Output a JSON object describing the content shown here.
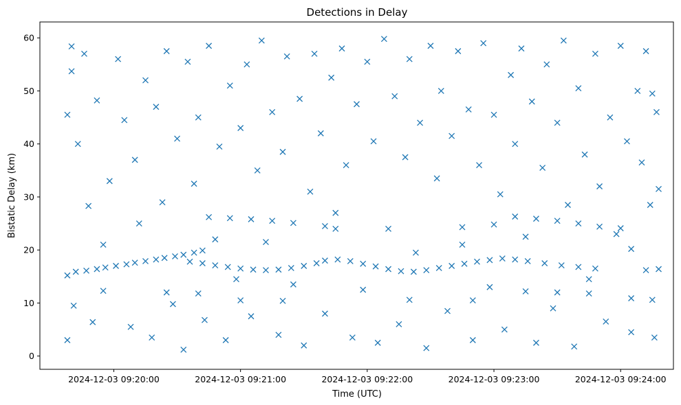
{
  "chart_data": {
    "type": "scatter",
    "title": "Detections in Delay",
    "xlabel": "Time (UTC)",
    "ylabel": "Bistatic Delay (km)",
    "marker": "x",
    "color": "#1f77b4",
    "grid": false,
    "legend": "none",
    "xlim": [
      "2024-12-03 09:19:25",
      "2024-12-03 09:24:25"
    ],
    "ylim": [
      -2.5,
      63
    ],
    "x_ticks": [
      "2024-12-03 09:20:00",
      "2024-12-03 09:21:00",
      "2024-12-03 09:22:00",
      "2024-12-03 09:23:00",
      "2024-12-03 09:24:00"
    ],
    "y_ticks": [
      0,
      10,
      20,
      30,
      40,
      50,
      60
    ],
    "series": [
      {
        "values": [
          [
            "2024-12-03 09:19:38",
            15.2
          ],
          [
            "2024-12-03 09:19:42",
            15.9
          ],
          [
            "2024-12-03 09:19:47",
            16.1
          ],
          [
            "2024-12-03 09:19:52",
            16.4
          ],
          [
            "2024-12-03 09:19:56",
            16.7
          ],
          [
            "2024-12-03 09:20:01",
            17.0
          ],
          [
            "2024-12-03 09:20:06",
            17.3
          ],
          [
            "2024-12-03 09:20:10",
            17.6
          ],
          [
            "2024-12-03 09:20:15",
            17.9
          ],
          [
            "2024-12-03 09:20:20",
            18.2
          ],
          [
            "2024-12-03 09:20:24",
            18.5
          ],
          [
            "2024-12-03 09:20:29",
            18.8
          ],
          [
            "2024-12-03 09:20:33",
            19.1
          ],
          [
            "2024-12-03 09:20:38",
            19.5
          ],
          [
            "2024-12-03 09:20:42",
            19.9
          ],
          [
            "2024-12-03 09:20:36",
            17.8
          ],
          [
            "2024-12-03 09:20:42",
            17.5
          ],
          [
            "2024-12-03 09:20:48",
            17.1
          ],
          [
            "2024-12-03 09:20:54",
            16.8
          ],
          [
            "2024-12-03 09:21:00",
            16.5
          ],
          [
            "2024-12-03 09:21:06",
            16.3
          ],
          [
            "2024-12-03 09:21:12",
            16.2
          ],
          [
            "2024-12-03 09:21:18",
            16.3
          ],
          [
            "2024-12-03 09:21:24",
            16.6
          ],
          [
            "2024-12-03 09:21:30",
            17.0
          ],
          [
            "2024-12-03 09:21:36",
            17.5
          ],
          [
            "2024-12-03 09:21:40",
            18.0
          ],
          [
            "2024-12-03 09:21:46",
            18.2
          ],
          [
            "2024-12-03 09:21:52",
            17.9
          ],
          [
            "2024-12-03 09:21:58",
            17.4
          ],
          [
            "2024-12-03 09:22:04",
            16.9
          ],
          [
            "2024-12-03 09:22:10",
            16.4
          ],
          [
            "2024-12-03 09:22:16",
            16.0
          ],
          [
            "2024-12-03 09:22:22",
            15.9
          ],
          [
            "2024-12-03 09:22:28",
            16.2
          ],
          [
            "2024-12-03 09:22:34",
            16.6
          ],
          [
            "2024-12-03 09:22:40",
            17.0
          ],
          [
            "2024-12-03 09:22:46",
            17.4
          ],
          [
            "2024-12-03 09:22:52",
            17.8
          ],
          [
            "2024-12-03 09:22:58",
            18.1
          ],
          [
            "2024-12-03 09:23:04",
            18.4
          ],
          [
            "2024-12-03 09:23:10",
            18.2
          ],
          [
            "2024-12-03 09:23:16",
            17.9
          ],
          [
            "2024-12-03 09:23:24",
            17.5
          ],
          [
            "2024-12-03 09:23:32",
            17.1
          ],
          [
            "2024-12-03 09:23:40",
            16.8
          ],
          [
            "2024-12-03 09:23:48",
            16.5
          ],
          [
            "2024-12-03 09:24:12",
            16.2
          ],
          [
            "2024-12-03 09:24:18",
            16.4
          ],
          [
            "2024-12-03 09:20:45",
            26.2
          ],
          [
            "2024-12-03 09:20:55",
            26.0
          ],
          [
            "2024-12-03 09:21:05",
            25.8
          ],
          [
            "2024-12-03 09:21:15",
            25.5
          ],
          [
            "2024-12-03 09:21:25",
            25.1
          ],
          [
            "2024-12-03 09:21:40",
            24.5
          ],
          [
            "2024-12-03 09:21:45",
            24.0
          ],
          [
            "2024-12-03 09:22:45",
            24.3
          ],
          [
            "2024-12-03 09:23:00",
            24.8
          ],
          [
            "2024-12-03 09:23:10",
            26.3
          ],
          [
            "2024-12-03 09:23:20",
            25.9
          ],
          [
            "2024-12-03 09:23:30",
            25.5
          ],
          [
            "2024-12-03 09:23:40",
            25.0
          ],
          [
            "2024-12-03 09:23:50",
            24.4
          ],
          [
            "2024-12-03 09:24:00",
            24.1
          ],
          [
            "2024-12-03 09:19:55",
            12.3
          ],
          [
            "2024-12-03 09:20:25",
            12.0
          ],
          [
            "2024-12-03 09:20:40",
            11.8
          ],
          [
            "2024-12-03 09:21:00",
            10.5
          ],
          [
            "2024-12-03 09:21:20",
            10.4
          ],
          [
            "2024-12-03 09:22:20",
            10.6
          ],
          [
            "2024-12-03 09:22:50",
            10.5
          ],
          [
            "2024-12-03 09:23:15",
            12.2
          ],
          [
            "2024-12-03 09:23:30",
            12.0
          ],
          [
            "2024-12-03 09:23:45",
            11.8
          ],
          [
            "2024-12-03 09:24:05",
            10.9
          ],
          [
            "2024-12-03 09:24:15",
            10.6
          ],
          [
            "2024-12-03 09:19:38",
            45.5
          ],
          [
            "2024-12-03 09:19:40",
            58.4
          ],
          [
            "2024-12-03 09:19:40",
            53.7
          ],
          [
            "2024-12-03 09:19:43",
            40.0
          ],
          [
            "2024-12-03 09:19:46",
            57.0
          ],
          [
            "2024-12-03 09:19:48",
            28.3
          ],
          [
            "2024-12-03 09:19:50",
            6.4
          ],
          [
            "2024-12-03 09:19:52",
            48.2
          ],
          [
            "2024-12-03 09:19:38",
            3.0
          ],
          [
            "2024-12-03 09:19:41",
            9.5
          ],
          [
            "2024-12-03 09:19:55",
            21.0
          ],
          [
            "2024-12-03 09:19:58",
            33.0
          ],
          [
            "2024-12-03 09:20:02",
            56.0
          ],
          [
            "2024-12-03 09:20:05",
            44.5
          ],
          [
            "2024-12-03 09:20:08",
            5.5
          ],
          [
            "2024-12-03 09:20:10",
            37.0
          ],
          [
            "2024-12-03 09:20:12",
            25.0
          ],
          [
            "2024-12-03 09:20:15",
            52.0
          ],
          [
            "2024-12-03 09:20:18",
            3.5
          ],
          [
            "2024-12-03 09:20:20",
            47.0
          ],
          [
            "2024-12-03 09:20:23",
            29.0
          ],
          [
            "2024-12-03 09:20:25",
            57.5
          ],
          [
            "2024-12-03 09:20:28",
            9.8
          ],
          [
            "2024-12-03 09:20:30",
            41.0
          ],
          [
            "2024-12-03 09:20:33",
            1.2
          ],
          [
            "2024-12-03 09:20:35",
            55.5
          ],
          [
            "2024-12-03 09:20:38",
            32.5
          ],
          [
            "2024-12-03 09:20:40",
            45.0
          ],
          [
            "2024-12-03 09:20:43",
            6.8
          ],
          [
            "2024-12-03 09:20:45",
            58.5
          ],
          [
            "2024-12-03 09:20:48",
            22.0
          ],
          [
            "2024-12-03 09:20:50",
            39.5
          ],
          [
            "2024-12-03 09:20:53",
            3.0
          ],
          [
            "2024-12-03 09:20:55",
            51.0
          ],
          [
            "2024-12-03 09:20:58",
            14.5
          ],
          [
            "2024-12-03 09:21:00",
            43.0
          ],
          [
            "2024-12-03 09:21:03",
            55.0
          ],
          [
            "2024-12-03 09:21:05",
            7.5
          ],
          [
            "2024-12-03 09:21:08",
            35.0
          ],
          [
            "2024-12-03 09:21:10",
            59.5
          ],
          [
            "2024-12-03 09:21:12",
            21.5
          ],
          [
            "2024-12-03 09:21:15",
            46.0
          ],
          [
            "2024-12-03 09:21:18",
            4.0
          ],
          [
            "2024-12-03 09:21:20",
            38.5
          ],
          [
            "2024-12-03 09:21:22",
            56.5
          ],
          [
            "2024-12-03 09:21:25",
            13.5
          ],
          [
            "2024-12-03 09:21:28",
            48.5
          ],
          [
            "2024-12-03 09:21:30",
            2.0
          ],
          [
            "2024-12-03 09:21:33",
            31.0
          ],
          [
            "2024-12-03 09:21:35",
            57.0
          ],
          [
            "2024-12-03 09:21:38",
            42.0
          ],
          [
            "2024-12-03 09:21:40",
            8.0
          ],
          [
            "2024-12-03 09:21:43",
            52.5
          ],
          [
            "2024-12-03 09:21:45",
            27.0
          ],
          [
            "2024-12-03 09:21:48",
            58.0
          ],
          [
            "2024-12-03 09:21:50",
            36.0
          ],
          [
            "2024-12-03 09:21:53",
            3.5
          ],
          [
            "2024-12-03 09:21:55",
            47.5
          ],
          [
            "2024-12-03 09:21:58",
            12.5
          ],
          [
            "2024-12-03 09:22:00",
            55.5
          ],
          [
            "2024-12-03 09:22:03",
            40.5
          ],
          [
            "2024-12-03 09:22:05",
            2.5
          ],
          [
            "2024-12-03 09:22:08",
            59.8
          ],
          [
            "2024-12-03 09:22:10",
            24.0
          ],
          [
            "2024-12-03 09:22:13",
            49.0
          ],
          [
            "2024-12-03 09:22:15",
            6.0
          ],
          [
            "2024-12-03 09:22:18",
            37.5
          ],
          [
            "2024-12-03 09:22:20",
            56.0
          ],
          [
            "2024-12-03 09:22:23",
            19.5
          ],
          [
            "2024-12-03 09:22:25",
            44.0
          ],
          [
            "2024-12-03 09:22:28",
            1.5
          ],
          [
            "2024-12-03 09:22:30",
            58.5
          ],
          [
            "2024-12-03 09:22:33",
            33.5
          ],
          [
            "2024-12-03 09:22:35",
            50.0
          ],
          [
            "2024-12-03 09:22:38",
            8.5
          ],
          [
            "2024-12-03 09:22:40",
            41.5
          ],
          [
            "2024-12-03 09:22:43",
            57.5
          ],
          [
            "2024-12-03 09:22:45",
            21.0
          ],
          [
            "2024-12-03 09:22:48",
            46.5
          ],
          [
            "2024-12-03 09:22:50",
            3.0
          ],
          [
            "2024-12-03 09:22:53",
            36.0
          ],
          [
            "2024-12-03 09:22:55",
            59.0
          ],
          [
            "2024-12-03 09:22:58",
            13.0
          ],
          [
            "2024-12-03 09:23:00",
            45.5
          ],
          [
            "2024-12-03 09:23:03",
            30.5
          ],
          [
            "2024-12-03 09:23:05",
            5.0
          ],
          [
            "2024-12-03 09:23:08",
            53.0
          ],
          [
            "2024-12-03 09:23:10",
            40.0
          ],
          [
            "2024-12-03 09:23:13",
            58.0
          ],
          [
            "2024-12-03 09:23:15",
            22.5
          ],
          [
            "2024-12-03 09:23:18",
            48.0
          ],
          [
            "2024-12-03 09:23:20",
            2.5
          ],
          [
            "2024-12-03 09:23:23",
            35.5
          ],
          [
            "2024-12-03 09:23:25",
            55.0
          ],
          [
            "2024-12-03 09:23:28",
            9.0
          ],
          [
            "2024-12-03 09:23:30",
            44.0
          ],
          [
            "2024-12-03 09:23:33",
            59.5
          ],
          [
            "2024-12-03 09:23:35",
            28.5
          ],
          [
            "2024-12-03 09:23:38",
            1.8
          ],
          [
            "2024-12-03 09:23:40",
            50.5
          ],
          [
            "2024-12-03 09:23:43",
            38.0
          ],
          [
            "2024-12-03 09:23:45",
            14.5
          ],
          [
            "2024-12-03 09:23:48",
            57.0
          ],
          [
            "2024-12-03 09:23:50",
            32.0
          ],
          [
            "2024-12-03 09:23:53",
            6.5
          ],
          [
            "2024-12-03 09:23:55",
            45.0
          ],
          [
            "2024-12-03 09:23:58",
            23.0
          ],
          [
            "2024-12-03 09:24:00",
            58.5
          ],
          [
            "2024-12-03 09:24:03",
            40.5
          ],
          [
            "2024-12-03 09:24:05",
            4.5
          ],
          [
            "2024-12-03 09:24:08",
            50.0
          ],
          [
            "2024-12-03 09:24:10",
            36.5
          ],
          [
            "2024-12-03 09:24:12",
            57.5
          ],
          [
            "2024-12-03 09:24:14",
            28.5
          ],
          [
            "2024-12-03 09:24:16",
            3.5
          ],
          [
            "2024-12-03 09:24:17",
            46.0
          ],
          [
            "2024-12-03 09:24:18",
            31.5
          ],
          [
            "2024-12-03 09:24:15",
            49.5
          ],
          [
            "2024-12-03 09:24:05",
            20.2
          ]
        ]
      }
    ]
  }
}
